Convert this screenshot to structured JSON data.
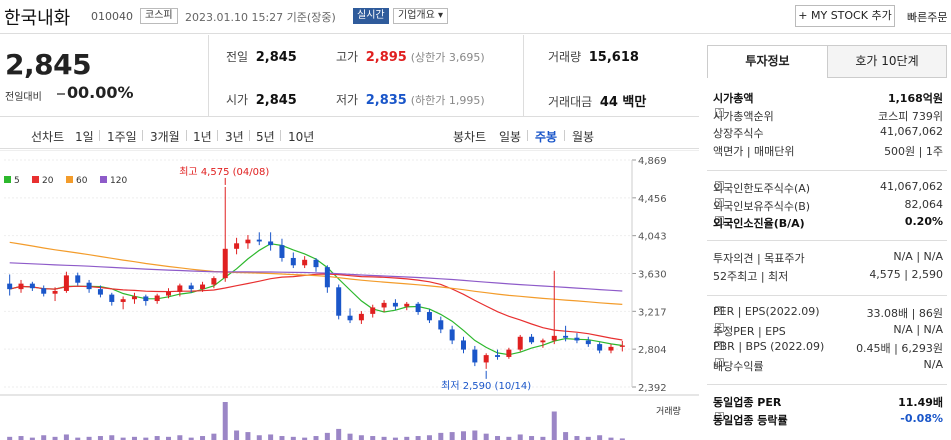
{
  "header": {
    "name": "한국내화",
    "code": "010040",
    "market": "코스피",
    "datetime": "2023.01.10 15:27 기준(장중)",
    "live": "실시간",
    "company_info": "기업개요",
    "mystock": "+ MY STOCK 추가",
    "quick_order": "빠른주문"
  },
  "summary": {
    "price": "2,845",
    "change_label": "전일대비",
    "change_value": "0",
    "change_pct": "0.00%",
    "prev_label": "전일",
    "prev": "2,845",
    "open_label": "시가",
    "open": "2,845",
    "high_label": "고가",
    "high": "2,895",
    "upper_limit": "(상한가 3,695)",
    "low_label": "저가",
    "low": "2,835",
    "lower_limit": "(하한가 1,995)",
    "volume_label": "거래량",
    "volume": "15,618",
    "amount_label": "거래대금",
    "amount": "44 백만"
  },
  "periods": {
    "line_label": "선차트",
    "line": [
      "1일",
      "1주일",
      "3개월",
      "1년",
      "3년",
      "5년",
      "10년"
    ],
    "candle_label": "봉차트",
    "candle": [
      "일봉",
      "주봉",
      "월봉"
    ],
    "candle_active": "주봉"
  },
  "side": {
    "tab_invest": "투자정보",
    "tab_hoga": "호가 10단계",
    "rows1": [
      {
        "l": "시가총액",
        "r": "1,168억원"
      },
      {
        "l": "시가총액순위",
        "r": "코스피 739위"
      },
      {
        "l": "상장주식수",
        "r": "41,067,062"
      },
      {
        "l": "액면가 | 매매단위",
        "r": "500원 | 1주"
      }
    ],
    "rows2": [
      {
        "l": "외국인한도주식수(A)",
        "r": "41,067,062"
      },
      {
        "l": "외국인보유주식수(B)",
        "r": "82,064"
      },
      {
        "l": "외국인소진율(B/A)",
        "r": "0.20%"
      }
    ],
    "rows3": [
      {
        "l": "투자의견 | 목표주가",
        "r": "N/A | N/A"
      },
      {
        "l": "52주최고 | 최저",
        "r": "4,575 | 2,590"
      }
    ],
    "rows4": [
      {
        "l": "PER | EPS(2022.09)",
        "r": "33.08배 | 86원"
      },
      {
        "l": "추정PER | EPS",
        "r": "N/A | N/A"
      },
      {
        "l": "PBR | BPS (2022.09)",
        "r": "0.45배 | 6,293원"
      },
      {
        "l": "배당수익률",
        "r": "N/A"
      }
    ],
    "rows5": [
      {
        "l": "동일업종 PER",
        "r": "11.49배"
      },
      {
        "l": "동일업종 등락률",
        "r": "-0.08%"
      }
    ]
  },
  "chart_data": {
    "type": "candlestick",
    "legend": [
      "5",
      "20",
      "60",
      "120"
    ],
    "legend_colors": [
      "#2db82d",
      "#e83030",
      "#f39c2b",
      "#8e5bc9"
    ],
    "y_ticks": [
      "4,869",
      "4,456",
      "4,043",
      "3,630",
      "3,217",
      "2,804",
      "2,392"
    ],
    "ylim": [
      2392,
      4869
    ],
    "high_label": "최고 4,575 (04/08)",
    "low_label": "최저 2,590 (10/14)",
    "volume_label": "거래량",
    "candles": [
      [
        3520,
        3620,
        3390,
        3460
      ],
      [
        3460,
        3560,
        3420,
        3520
      ],
      [
        3520,
        3540,
        3440,
        3470
      ],
      [
        3470,
        3500,
        3380,
        3410
      ],
      [
        3410,
        3480,
        3330,
        3440
      ],
      [
        3440,
        3650,
        3420,
        3610
      ],
      [
        3610,
        3640,
        3500,
        3530
      ],
      [
        3530,
        3560,
        3420,
        3460
      ],
      [
        3460,
        3500,
        3370,
        3400
      ],
      [
        3400,
        3420,
        3280,
        3320
      ],
      [
        3320,
        3380,
        3240,
        3350
      ],
      [
        3350,
        3420,
        3300,
        3380
      ],
      [
        3380,
        3400,
        3280,
        3330
      ],
      [
        3330,
        3410,
        3300,
        3390
      ],
      [
        3390,
        3470,
        3360,
        3430
      ],
      [
        3430,
        3520,
        3380,
        3500
      ],
      [
        3500,
        3530,
        3420,
        3460
      ],
      [
        3460,
        3540,
        3430,
        3510
      ],
      [
        3510,
        3600,
        3470,
        3580
      ],
      [
        3580,
        4575,
        3540,
        3900
      ],
      [
        3900,
        4020,
        3840,
        3960
      ],
      [
        3960,
        4050,
        3900,
        4000
      ],
      [
        4000,
        4080,
        3940,
        3980
      ],
      [
        3980,
        4080,
        3880,
        3940
      ],
      [
        3940,
        4010,
        3760,
        3800
      ],
      [
        3800,
        3860,
        3690,
        3720
      ],
      [
        3720,
        3820,
        3690,
        3780
      ],
      [
        3780,
        3800,
        3650,
        3700
      ],
      [
        3700,
        3720,
        3420,
        3480
      ],
      [
        3480,
        3510,
        3130,
        3170
      ],
      [
        3170,
        3250,
        3090,
        3120
      ],
      [
        3120,
        3220,
        3080,
        3190
      ],
      [
        3190,
        3290,
        3150,
        3260
      ],
      [
        3260,
        3340,
        3210,
        3310
      ],
      [
        3310,
        3350,
        3230,
        3270
      ],
      [
        3270,
        3320,
        3230,
        3300
      ],
      [
        3300,
        3320,
        3180,
        3210
      ],
      [
        3210,
        3240,
        3090,
        3120
      ],
      [
        3120,
        3160,
        2980,
        3020
      ],
      [
        3020,
        3060,
        2860,
        2900
      ],
      [
        2900,
        2940,
        2760,
        2800
      ],
      [
        2800,
        2840,
        2620,
        2660
      ],
      [
        2660,
        2760,
        2590,
        2740
      ],
      [
        2740,
        2800,
        2690,
        2720
      ],
      [
        2720,
        2820,
        2700,
        2800
      ],
      [
        2800,
        2960,
        2780,
        2940
      ],
      [
        2940,
        2970,
        2860,
        2880
      ],
      [
        2880,
        2920,
        2820,
        2900
      ],
      [
        2900,
        3660,
        2860,
        2950
      ],
      [
        2950,
        3060,
        2890,
        2930
      ],
      [
        2930,
        2980,
        2870,
        2900
      ],
      [
        2900,
        2940,
        2830,
        2860
      ],
      [
        2860,
        2880,
        2760,
        2790
      ],
      [
        2790,
        2860,
        2760,
        2830
      ],
      [
        2830,
        2895,
        2780,
        2845
      ]
    ],
    "volumes": [
      4,
      5,
      3,
      6,
      4,
      7,
      3,
      4,
      5,
      6,
      3,
      4,
      3,
      5,
      4,
      6,
      3,
      5,
      8,
      48,
      12,
      10,
      6,
      7,
      5,
      4,
      3,
      5,
      9,
      14,
      8,
      6,
      5,
      4,
      3,
      4,
      5,
      6,
      9,
      10,
      11,
      12,
      8,
      5,
      4,
      7,
      5,
      4,
      36,
      10,
      5,
      4,
      6,
      3,
      2
    ]
  }
}
